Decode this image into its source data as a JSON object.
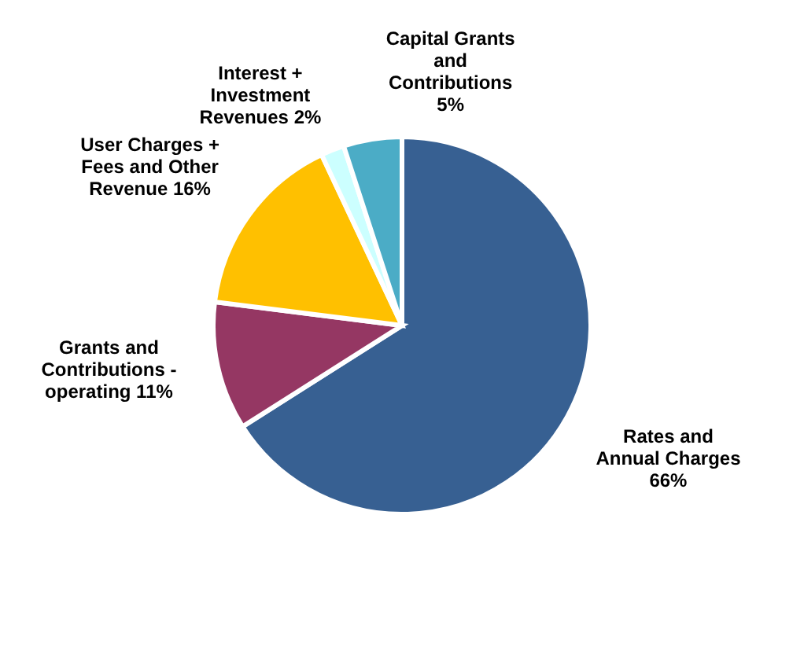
{
  "chart_data": {
    "type": "pie",
    "categories": [
      "Rates and Annual Charges",
      "Grants and Contributions - operating",
      "User Charges + Fees and Other Revenue",
      "Interest + Investment Revenues",
      "Capital Grants and Contributions"
    ],
    "values": [
      66,
      11,
      16,
      2,
      5
    ],
    "value_labels": [
      "66%",
      "11%",
      "16%",
      "2%",
      "5%"
    ],
    "colors": [
      "#376092",
      "#953763",
      "#ffc000",
      "#ccffff",
      "#4bacc6"
    ]
  }
}
